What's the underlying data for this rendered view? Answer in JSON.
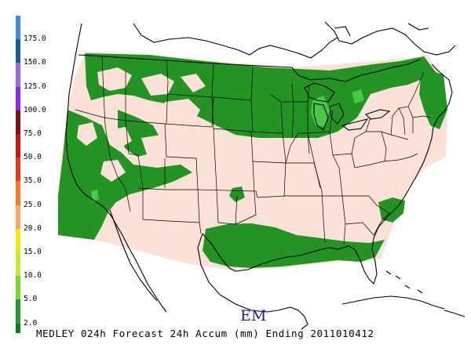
{
  "legend": {
    "bins": [
      {
        "label": "175.0",
        "color": "#3f8cdc"
      },
      {
        "label": "150.0",
        "color": "#1f5a96"
      },
      {
        "label": "125.0",
        "color": "#9c6ad8"
      },
      {
        "label": "100.0",
        "color": "#8a2be2"
      },
      {
        "label": "75.0",
        "color": "#7a1212"
      },
      {
        "label": "50.0",
        "color": "#c41818"
      },
      {
        "label": "35.0",
        "color": "#e23c1a"
      },
      {
        "label": "25.0",
        "color": "#ee7e2a"
      },
      {
        "label": "20.0",
        "color": "#f4a870"
      },
      {
        "label": "15.0",
        "color": "#f0e614"
      },
      {
        "label": "10.0",
        "color": "#c8e636"
      },
      {
        "label": "5.0",
        "color": "#7ad82a"
      },
      {
        "label": "2.0",
        "color": "#2a9a2a"
      }
    ],
    "bottom_color": "#147814"
  },
  "map": {
    "background_color": "#ffffff",
    "domain_color": "#fbe1d8",
    "precip_color": "#239423",
    "precip_light_color": "#47c847",
    "border_color": "#000000"
  },
  "model_tag": "EM",
  "caption": "MEDLEY 024h Forecast 24h Accum (mm) Ending 2011010412"
}
